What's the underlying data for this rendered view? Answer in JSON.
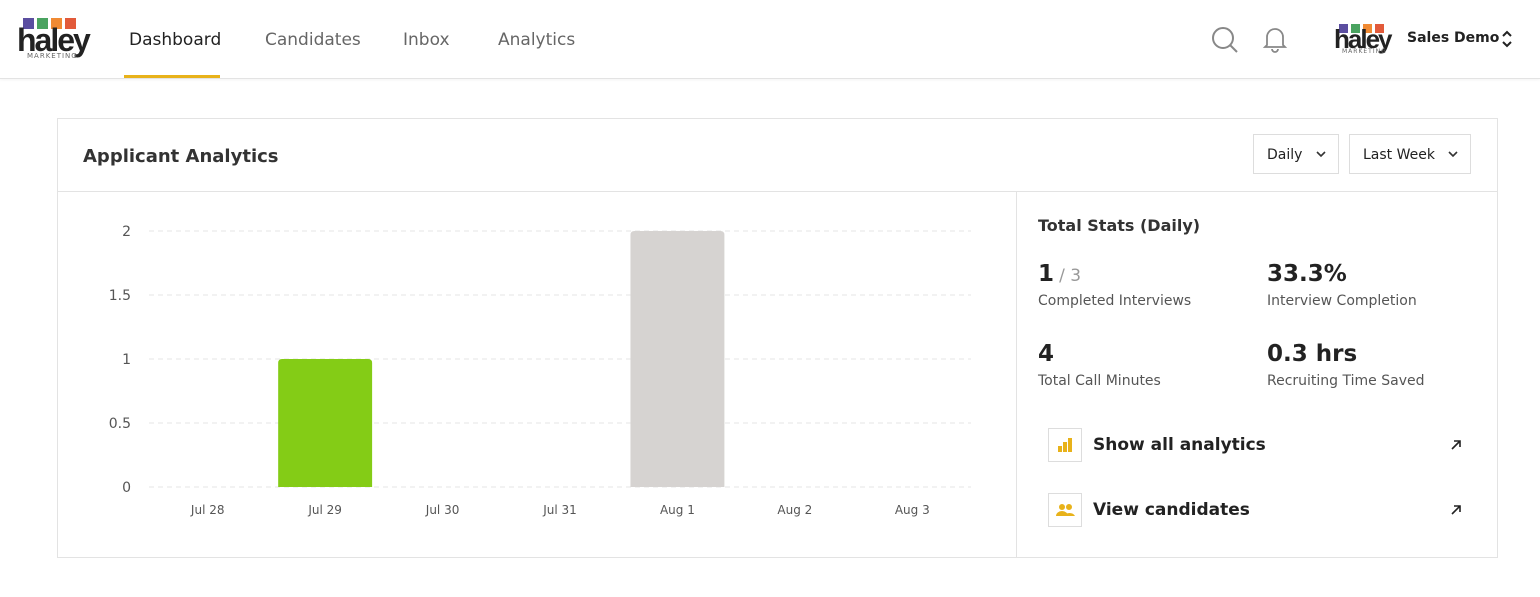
{
  "logo": {
    "text": "haley",
    "subtext": "MARKETING"
  },
  "nav": [
    "Dashboard",
    "Candidates",
    "Inbox",
    "Analytics"
  ],
  "user": {
    "name": "Sales Demo"
  },
  "card": {
    "title": "Applicant Analytics",
    "filters": [
      "Daily",
      "Last Week"
    ]
  },
  "chart_data": {
    "type": "bar",
    "categories": [
      "Jul 28",
      "Jul 29",
      "Jul 30",
      "Jul 31",
      "Aug 1",
      "Aug 2",
      "Aug 3"
    ],
    "values": [
      0,
      1,
      0,
      0,
      2,
      0,
      0
    ],
    "colors": [
      "#84cc16",
      "#84cc16",
      "#84cc16",
      "#84cc16",
      "#d6d3d1",
      "#84cc16",
      "#84cc16"
    ],
    "ylim": [
      0,
      2
    ],
    "yticks": [
      0,
      0.5,
      1,
      1.5,
      2
    ],
    "grid": true
  },
  "stats": {
    "title": "Total Stats (Daily)",
    "items": [
      {
        "value": "1",
        "suffix": "/ 3",
        "label": "Completed Interviews"
      },
      {
        "value": "33.3%",
        "label": "Interview Completion"
      },
      {
        "value": "4",
        "label": "Total Call Minutes"
      },
      {
        "value": "0.3 hrs",
        "label": "Recruiting Time Saved"
      }
    ]
  },
  "links": [
    "Show all analytics",
    "View candidates"
  ]
}
